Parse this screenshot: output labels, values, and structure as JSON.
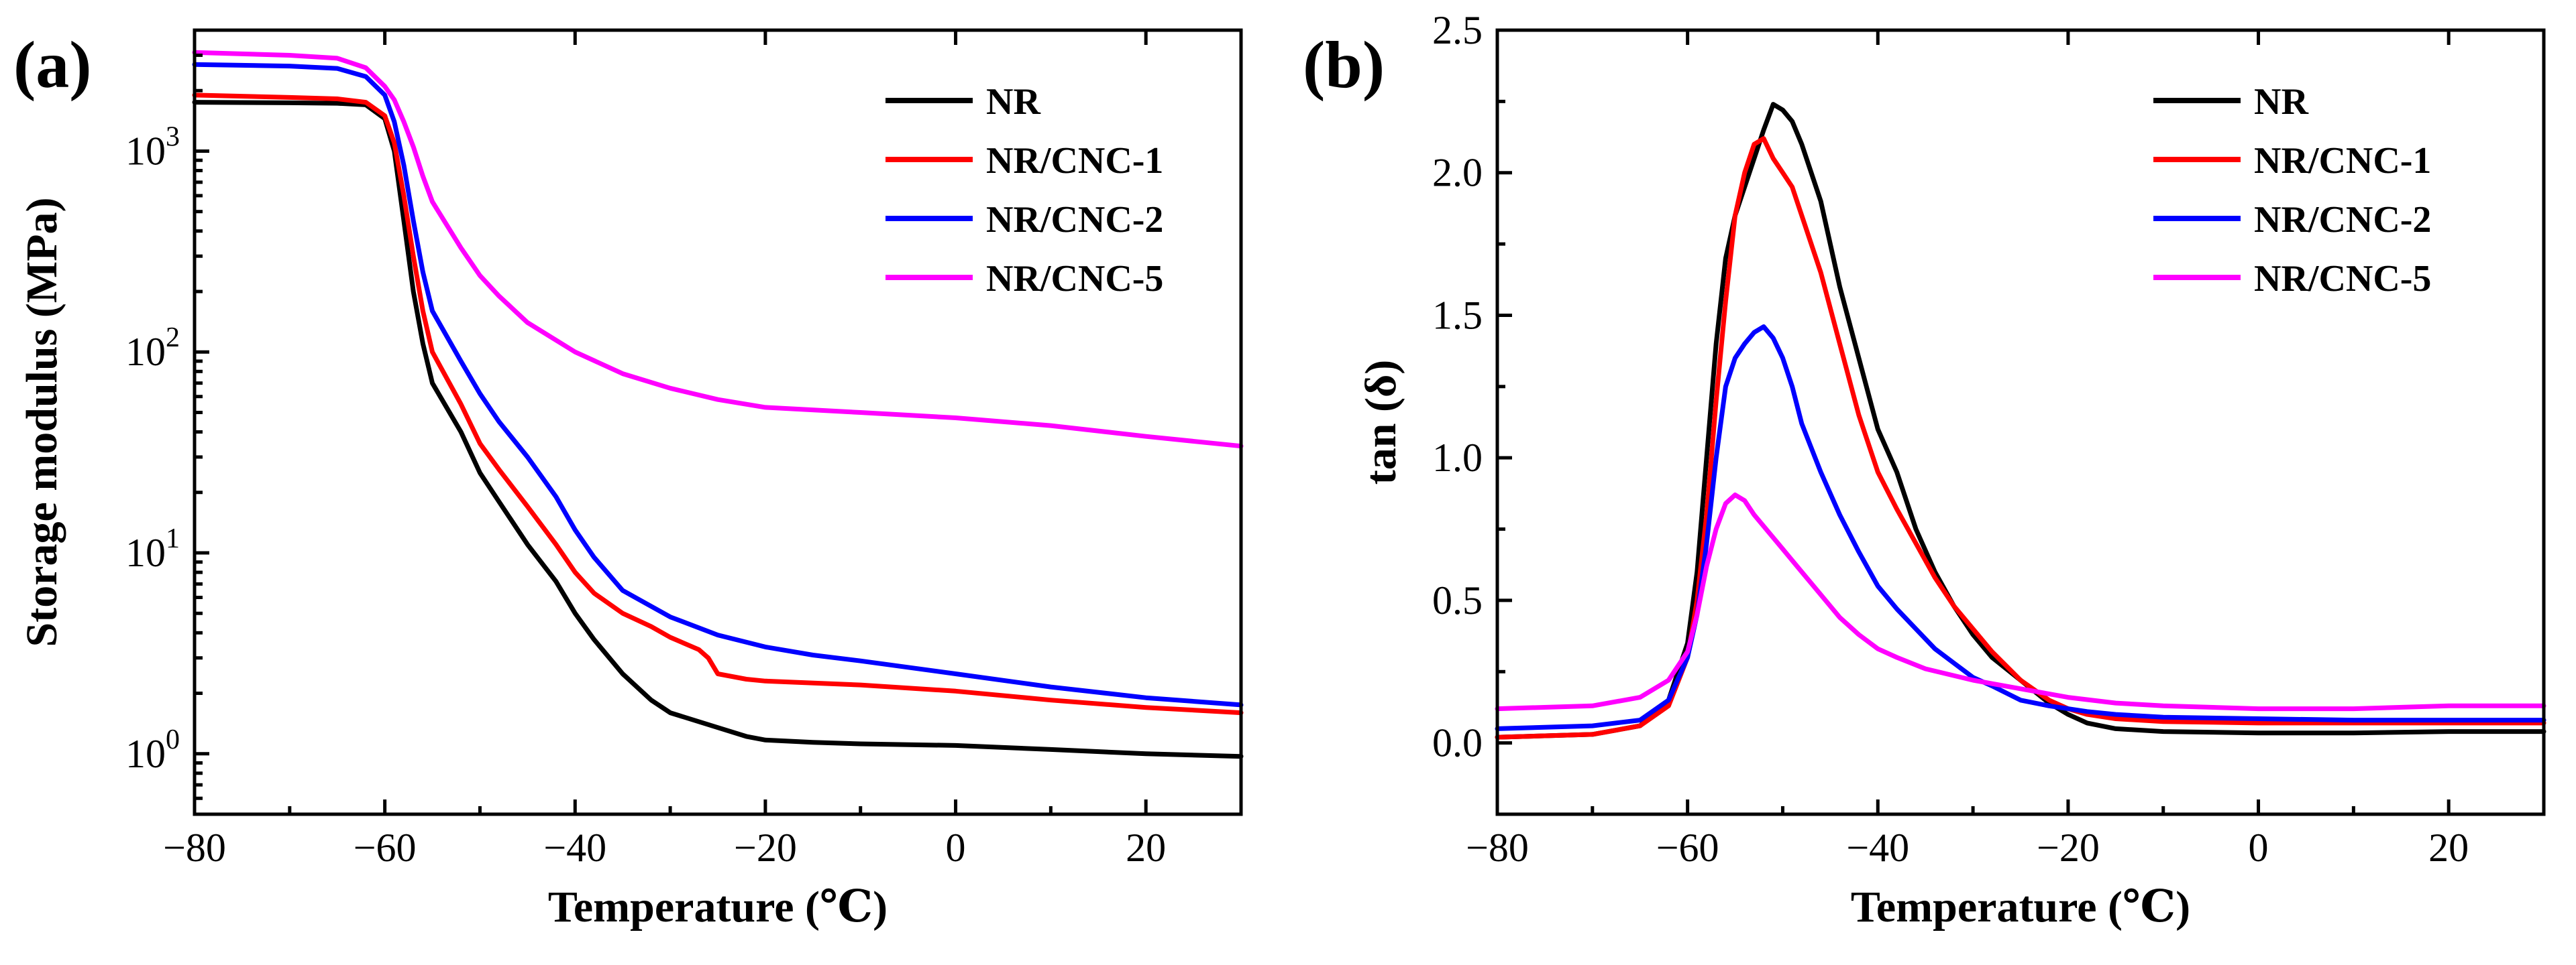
{
  "chart_data": [
    {
      "type": "line",
      "panel_label": "(a)",
      "xlabel": "Temperature (℃)",
      "ylabel": "Storage modulus (MPa)",
      "yscale": "log",
      "xlim": [
        -80,
        30
      ],
      "ylim": [
        0.5,
        4000
      ],
      "xticks": [
        -80,
        -60,
        -40,
        -20,
        0,
        20
      ],
      "xtick_labels": [
        "-80",
        "-60",
        "-40",
        "-20",
        "0",
        "20"
      ],
      "yticks": [
        1,
        10,
        100,
        1000
      ],
      "ytick_labels": [
        {
          "base": "10",
          "exp": "0"
        },
        {
          "base": "10",
          "exp": "1"
        },
        {
          "base": "10",
          "exp": "2"
        },
        {
          "base": "10",
          "exp": "3"
        }
      ],
      "legend_position": "top-right",
      "series": [
        {
          "name": "NR",
          "color": "#000000",
          "x": [
            -80,
            -70,
            -65,
            -62,
            -60,
            -59,
            -58,
            -57,
            -56,
            -55,
            -52,
            -50,
            -48,
            -45,
            -42,
            -40,
            -38,
            -35,
            -32,
            -30,
            -25,
            -22,
            -20,
            -15,
            -10,
            0,
            10,
            20,
            30
          ],
          "y": [
            1750,
            1740,
            1730,
            1700,
            1450,
            1000,
            450,
            200,
            110,
            70,
            40,
            25,
            18,
            11,
            7.2,
            5.0,
            3.7,
            2.5,
            1.85,
            1.6,
            1.35,
            1.22,
            1.17,
            1.14,
            1.12,
            1.1,
            1.05,
            1.0,
            0.97
          ]
        },
        {
          "name": "NR/CNC-1",
          "color": "#ff0000",
          "x": [
            -80,
            -70,
            -65,
            -62,
            -60,
            -59,
            -58,
            -57,
            -56,
            -55,
            -52,
            -50,
            -48,
            -45,
            -42,
            -40,
            -38,
            -35,
            -32,
            -30,
            -27,
            -26,
            -25,
            -22,
            -20,
            -10,
            0,
            10,
            20,
            30
          ],
          "y": [
            1900,
            1850,
            1820,
            1750,
            1500,
            1100,
            600,
            300,
            160,
            100,
            55,
            35,
            26,
            17,
            11,
            8.0,
            6.3,
            5.0,
            4.3,
            3.8,
            3.3,
            3.0,
            2.5,
            2.35,
            2.3,
            2.2,
            2.05,
            1.85,
            1.7,
            1.6
          ]
        },
        {
          "name": "NR/CNC-2",
          "color": "#0000ff",
          "x": [
            -80,
            -70,
            -65,
            -62,
            -60,
            -59,
            -58,
            -57,
            -56,
            -55,
            -52,
            -50,
            -48,
            -45,
            -42,
            -40,
            -38,
            -35,
            -30,
            -25,
            -20,
            -15,
            -10,
            0,
            10,
            20,
            30
          ],
          "y": [
            2700,
            2650,
            2580,
            2350,
            1900,
            1400,
            850,
            450,
            250,
            160,
            90,
            62,
            45,
            30,
            19,
            13,
            9.5,
            6.5,
            4.8,
            3.9,
            3.4,
            3.1,
            2.9,
            2.5,
            2.15,
            1.9,
            1.75
          ]
        },
        {
          "name": "NR/CNC-5",
          "color": "#ff00ff",
          "x": [
            -80,
            -70,
            -65,
            -62,
            -60,
            -59,
            -58,
            -57,
            -56,
            -55,
            -52,
            -50,
            -48,
            -45,
            -40,
            -35,
            -30,
            -25,
            -20,
            -10,
            0,
            10,
            20,
            30
          ],
          "y": [
            3100,
            3000,
            2900,
            2600,
            2100,
            1800,
            1400,
            1050,
            750,
            560,
            330,
            240,
            190,
            140,
            100,
            78,
            66,
            58,
            53,
            50,
            47,
            43,
            38,
            34
          ]
        }
      ]
    },
    {
      "type": "line",
      "panel_label": "(b)",
      "xlabel": "Temperature (℃)",
      "ylabel": "tan (δ)",
      "yscale": "linear",
      "xlim": [
        -80,
        30
      ],
      "ylim": [
        -0.25,
        2.5
      ],
      "xticks": [
        -80,
        -60,
        -40,
        -20,
        0,
        20
      ],
      "xtick_labels": [
        "-80",
        "-60",
        "-40",
        "-20",
        "0",
        "20"
      ],
      "yticks": [
        0.0,
        0.5,
        1.0,
        1.5,
        2.0,
        2.5
      ],
      "ytick_labels": [
        "0.0",
        "0.5",
        "1.0",
        "1.5",
        "2.0",
        "2.5"
      ],
      "legend_position": "top-right",
      "series": [
        {
          "name": "NR",
          "color": "#000000",
          "x": [
            -80,
            -70,
            -65,
            -62,
            -60,
            -59,
            -58,
            -57,
            -56,
            -55,
            -54,
            -53,
            -52,
            -51,
            -50,
            -49,
            -48,
            -46,
            -44,
            -42,
            -40,
            -38,
            -36,
            -34,
            -32,
            -30,
            -28,
            -25,
            -22,
            -20,
            -18,
            -15,
            -10,
            0,
            10,
            20,
            30
          ],
          "y": [
            0.02,
            0.03,
            0.06,
            0.15,
            0.35,
            0.6,
            1.0,
            1.4,
            1.7,
            1.85,
            1.95,
            2.05,
            2.15,
            2.24,
            2.22,
            2.18,
            2.1,
            1.9,
            1.6,
            1.35,
            1.1,
            0.95,
            0.75,
            0.6,
            0.48,
            0.38,
            0.3,
            0.22,
            0.14,
            0.1,
            0.07,
            0.05,
            0.04,
            0.035,
            0.035,
            0.04,
            0.04
          ]
        },
        {
          "name": "NR/CNC-1",
          "color": "#ff0000",
          "x": [
            -80,
            -70,
            -65,
            -62,
            -60,
            -59,
            -58,
            -57,
            -56,
            -55,
            -54,
            -53,
            -52,
            -51,
            -50,
            -49,
            -48,
            -46,
            -44,
            -42,
            -40,
            -38,
            -36,
            -34,
            -32,
            -30,
            -28,
            -25,
            -22,
            -20,
            -18,
            -15,
            -10,
            0,
            10,
            20,
            30
          ],
          "y": [
            0.02,
            0.03,
            0.06,
            0.13,
            0.3,
            0.5,
            0.8,
            1.2,
            1.55,
            1.85,
            2.0,
            2.1,
            2.12,
            2.05,
            2.0,
            1.95,
            1.85,
            1.65,
            1.4,
            1.15,
            0.95,
            0.82,
            0.7,
            0.58,
            0.48,
            0.4,
            0.32,
            0.22,
            0.15,
            0.12,
            0.1,
            0.085,
            0.075,
            0.07,
            0.07,
            0.07,
            0.07
          ]
        },
        {
          "name": "NR/CNC-2",
          "color": "#0000ff",
          "x": [
            -80,
            -70,
            -65,
            -62,
            -60,
            -59,
            -58,
            -57,
            -56,
            -55,
            -54,
            -53,
            -52,
            -51,
            -50,
            -49,
            -48,
            -46,
            -44,
            -42,
            -40,
            -38,
            -36,
            -34,
            -32,
            -30,
            -28,
            -25,
            -22,
            -20,
            -18,
            -15,
            -10,
            0,
            10,
            20,
            30
          ],
          "y": [
            0.05,
            0.06,
            0.08,
            0.15,
            0.3,
            0.45,
            0.7,
            1.0,
            1.25,
            1.35,
            1.4,
            1.44,
            1.46,
            1.42,
            1.35,
            1.25,
            1.12,
            0.95,
            0.8,
            0.67,
            0.55,
            0.47,
            0.4,
            0.33,
            0.28,
            0.23,
            0.2,
            0.15,
            0.13,
            0.12,
            0.11,
            0.1,
            0.09,
            0.085,
            0.08,
            0.08,
            0.08
          ]
        },
        {
          "name": "NR/CNC-5",
          "color": "#ff00ff",
          "x": [
            -80,
            -70,
            -65,
            -62,
            -60,
            -59,
            -58,
            -57,
            -56,
            -55,
            -54,
            -53,
            -52,
            -50,
            -48,
            -46,
            -44,
            -42,
            -40,
            -38,
            -35,
            -30,
            -25,
            -20,
            -15,
            -10,
            0,
            10,
            20,
            30
          ],
          "y": [
            0.12,
            0.13,
            0.16,
            0.22,
            0.32,
            0.45,
            0.62,
            0.75,
            0.84,
            0.87,
            0.85,
            0.8,
            0.76,
            0.68,
            0.6,
            0.52,
            0.44,
            0.38,
            0.33,
            0.3,
            0.26,
            0.22,
            0.19,
            0.16,
            0.14,
            0.13,
            0.12,
            0.12,
            0.13,
            0.13
          ]
        }
      ]
    }
  ]
}
